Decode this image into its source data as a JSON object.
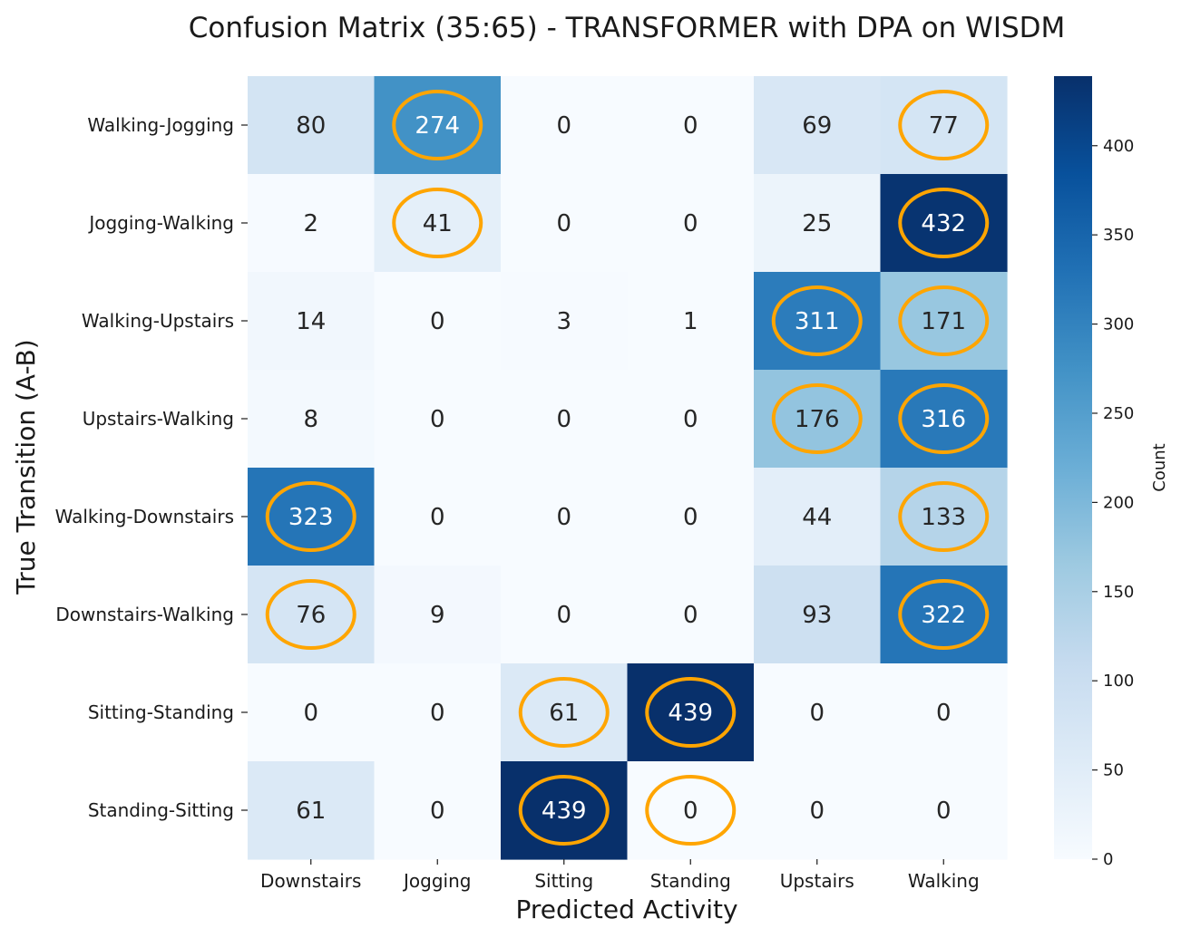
{
  "chart_data": {
    "type": "heatmap",
    "title": "Confusion Matrix (35:65) - TRANSFORMER with DPA on WISDM",
    "xlabel": "Predicted Activity",
    "ylabel": "True Transition (A-B)",
    "x_categories": [
      "Downstairs",
      "Jogging",
      "Sitting",
      "Standing",
      "Upstairs",
      "Walking"
    ],
    "y_categories": [
      "Walking-Jogging",
      "Jogging-Walking",
      "Walking-Upstairs",
      "Upstairs-Walking",
      "Walking-Downstairs",
      "Downstairs-Walking",
      "Sitting-Standing",
      "Standing-Sitting"
    ],
    "values": [
      [
        80,
        274,
        0,
        0,
        69,
        77
      ],
      [
        2,
        41,
        0,
        0,
        25,
        432
      ],
      [
        14,
        0,
        3,
        1,
        311,
        171
      ],
      [
        8,
        0,
        0,
        0,
        176,
        316
      ],
      [
        323,
        0,
        0,
        0,
        44,
        133
      ],
      [
        76,
        9,
        0,
        0,
        93,
        322
      ],
      [
        0,
        0,
        61,
        439,
        0,
        0
      ],
      [
        61,
        0,
        439,
        0,
        0,
        0
      ]
    ],
    "highlighted_cells": [
      [
        0,
        1
      ],
      [
        0,
        5
      ],
      [
        1,
        1
      ],
      [
        1,
        5
      ],
      [
        2,
        4
      ],
      [
        2,
        5
      ],
      [
        3,
        4
      ],
      [
        3,
        5
      ],
      [
        4,
        0
      ],
      [
        4,
        5
      ],
      [
        5,
        0
      ],
      [
        5,
        5
      ],
      [
        6,
        2
      ],
      [
        6,
        3
      ],
      [
        7,
        2
      ],
      [
        7,
        3
      ]
    ],
    "highlight_color": "#ffa500",
    "colormap": "Blues",
    "color_range": [
      0,
      439
    ],
    "colorbar": {
      "label": "Count",
      "ticks": [
        0,
        50,
        100,
        150,
        200,
        250,
        300,
        350,
        400
      ]
    }
  }
}
